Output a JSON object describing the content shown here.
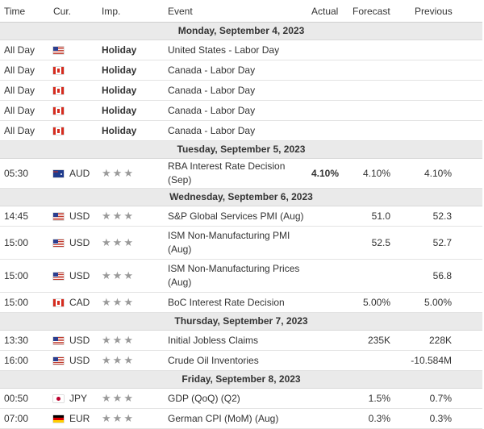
{
  "header": {
    "time": "Time",
    "cur": "Cur.",
    "imp": "Imp.",
    "event": "Event",
    "actual": "Actual",
    "forecast": "Forecast",
    "previous": "Previous"
  },
  "days": [
    {
      "date": "Monday, September 4, 2023",
      "events": [
        {
          "time": "All Day",
          "flag": "us-flag-icon",
          "cur": "",
          "imp": "Holiday",
          "event": "United States - Labor Day",
          "actual": "",
          "forecast": "",
          "previous": ""
        },
        {
          "time": "All Day",
          "flag": "ca-flag-icon",
          "cur": "",
          "imp": "Holiday",
          "event": "Canada - Labor Day",
          "actual": "",
          "forecast": "",
          "previous": ""
        },
        {
          "time": "All Day",
          "flag": "ca-flag-icon",
          "cur": "",
          "imp": "Holiday",
          "event": "Canada - Labor Day",
          "actual": "",
          "forecast": "",
          "previous": ""
        },
        {
          "time": "All Day",
          "flag": "ca-flag-icon",
          "cur": "",
          "imp": "Holiday",
          "event": "Canada - Labor Day",
          "actual": "",
          "forecast": "",
          "previous": ""
        },
        {
          "time": "All Day",
          "flag": "ca-flag-icon",
          "cur": "",
          "imp": "Holiday",
          "event": "Canada - Labor Day",
          "actual": "",
          "forecast": "",
          "previous": ""
        }
      ]
    },
    {
      "date": "Tuesday, September 5, 2023",
      "events": [
        {
          "time": "05:30",
          "flag": "au-flag-icon",
          "cur": "AUD",
          "imp": "",
          "stars": 3,
          "event": "RBA Interest Rate Decision (Sep)",
          "actual": "4.10%",
          "forecast": "4.10%",
          "previous": "4.10%"
        }
      ]
    },
    {
      "date": "Wednesday, September 6, 2023",
      "events": [
        {
          "time": "14:45",
          "flag": "us-flag-icon",
          "cur": "USD",
          "imp": "",
          "stars": 3,
          "event": "S&P Global Services PMI (Aug)",
          "actual": "",
          "forecast": "51.0",
          "previous": "52.3"
        },
        {
          "time": "15:00",
          "flag": "us-flag-icon",
          "cur": "USD",
          "imp": "",
          "stars": 3,
          "event": "ISM Non-Manufacturing PMI (Aug)",
          "actual": "",
          "forecast": "52.5",
          "previous": "52.7"
        },
        {
          "time": "15:00",
          "flag": "us-flag-icon",
          "cur": "USD",
          "imp": "",
          "stars": 3,
          "event": "ISM Non-Manufacturing Prices (Aug)",
          "actual": "",
          "forecast": "",
          "previous": "56.8"
        },
        {
          "time": "15:00",
          "flag": "ca-flag-icon",
          "cur": "CAD",
          "imp": "",
          "stars": 3,
          "event": "BoC Interest Rate Decision",
          "actual": "",
          "forecast": "5.00%",
          "previous": "5.00%"
        }
      ]
    },
    {
      "date": "Thursday, September 7, 2023",
      "events": [
        {
          "time": "13:30",
          "flag": "us-flag-icon",
          "cur": "USD",
          "imp": "",
          "stars": 3,
          "event": "Initial Jobless Claims",
          "actual": "",
          "forecast": "235K",
          "previous": "228K"
        },
        {
          "time": "16:00",
          "flag": "us-flag-icon",
          "cur": "USD",
          "imp": "",
          "stars": 3,
          "event": "Crude Oil Inventories",
          "actual": "",
          "forecast": "",
          "previous": "-10.584M"
        }
      ]
    },
    {
      "date": "Friday, September 8, 2023",
      "events": [
        {
          "time": "00:50",
          "flag": "jp-flag-icon",
          "cur": "JPY",
          "imp": "",
          "stars": 3,
          "event": "GDP (QoQ) (Q2)",
          "actual": "",
          "forecast": "1.5%",
          "previous": "0.7%"
        },
        {
          "time": "07:00",
          "flag": "de-flag-icon",
          "cur": "EUR",
          "imp": "",
          "stars": 3,
          "event": "German CPI (MoM) (Aug)",
          "actual": "",
          "forecast": "0.3%",
          "previous": "0.3%"
        }
      ]
    }
  ]
}
